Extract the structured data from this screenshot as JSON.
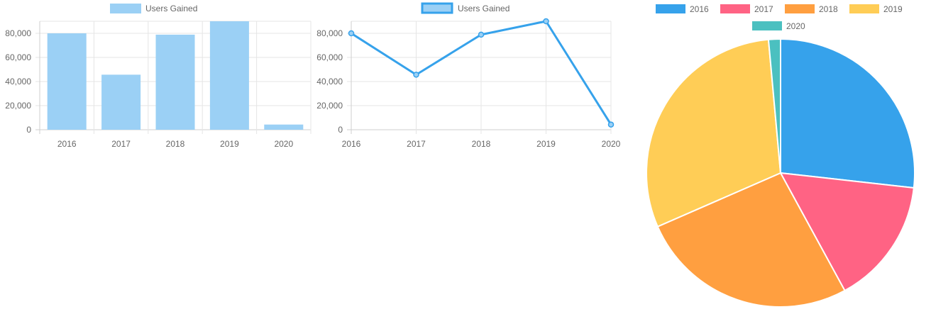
{
  "chart_data": [
    {
      "type": "bar",
      "legend": "Users Gained",
      "legend_position": "top",
      "categories": [
        "2016",
        "2017",
        "2018",
        "2019",
        "2020"
      ],
      "values": [
        80000,
        45677,
        78888,
        90000,
        4300
      ],
      "ylim": [
        0,
        90000
      ],
      "yticks": [
        0,
        20000,
        40000,
        60000,
        80000
      ],
      "ytick_labels": [
        "0",
        "20,000",
        "40,000",
        "60,000",
        "80,000"
      ],
      "grid": true,
      "colors": {
        "fill": "#9BD0F5",
        "stroke": "#36A2EB"
      }
    },
    {
      "type": "line",
      "legend": "Users Gained",
      "legend_position": "top",
      "categories": [
        "2016",
        "2017",
        "2018",
        "2019",
        "2020"
      ],
      "values": [
        80000,
        45677,
        78888,
        90000,
        4300
      ],
      "ylim": [
        0,
        90000
      ],
      "yticks": [
        0,
        20000,
        40000,
        60000,
        80000
      ],
      "ytick_labels": [
        "0",
        "20,000",
        "40,000",
        "60,000",
        "80,000"
      ],
      "grid": true,
      "colors": {
        "line": "#36A2EB",
        "legend_fill": "#9BD0F5"
      }
    },
    {
      "type": "pie",
      "legend_position": "top",
      "categories": [
        "2016",
        "2017",
        "2018",
        "2019",
        "2020"
      ],
      "values": [
        80000,
        45677,
        78888,
        90000,
        4300
      ],
      "colors": [
        "#36A2EB",
        "#FF6384",
        "#FF9F40",
        "#FFCD56",
        "#4BC0C0"
      ]
    }
  ]
}
